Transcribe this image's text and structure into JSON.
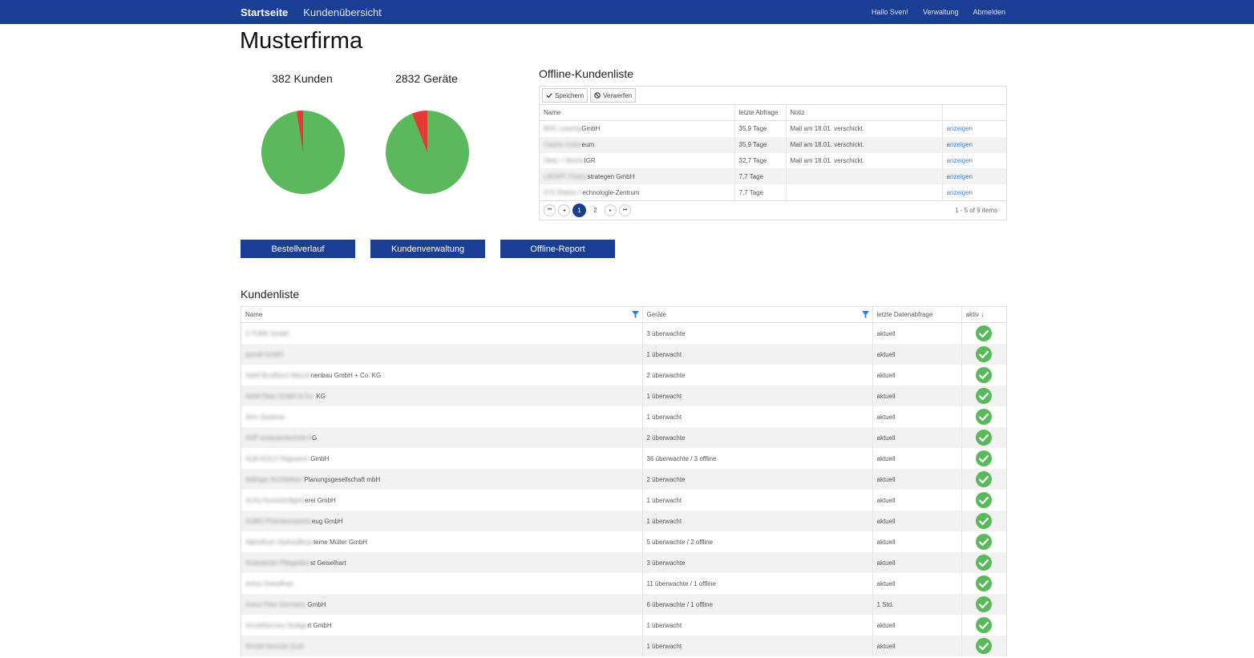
{
  "nav": {
    "brand": "Startseite",
    "link": "Kundenübersicht",
    "greeting": "Hallo Sven!",
    "admin": "Verwaltung",
    "logout": "Abmelden"
  },
  "page_title": "Musterfirma",
  "stats": {
    "customers": "382 Kunden",
    "devices": "2832 Geräte"
  },
  "colors": {
    "primary": "#1a3e94",
    "ok": "#5cb85c",
    "warn": "#e53935"
  },
  "offline": {
    "title": "Offline-Kundenliste",
    "save_label": "Speichern",
    "discard_label": "Verwerfen",
    "columns": [
      "Name",
      "letzte Abfrage",
      "Notiz",
      ""
    ],
    "rows": [
      {
        "name_hidden": "BHC Leasing",
        "name": "GmbH",
        "last": "35,9 Tage",
        "note": "Mail am 18.01. verschickt.",
        "action": "anzeigen"
      },
      {
        "name_hidden": "Casino Colos",
        "name": "eum",
        "last": "35,9 Tage",
        "note": "Mail am 18.01. verschickt.",
        "action": "anzeigen"
      },
      {
        "name_hidden": "Dietz + Roche",
        "name": "IGR",
        "last": "32,7 Tage",
        "note": "Mail am 18.01. verschickt.",
        "action": "anzeigen"
      },
      {
        "name_hidden": "LIEOPF Finanz",
        "name": "strategen GmbH",
        "last": "7,7 Tage",
        "note": "",
        "action": "anzeigen"
      },
      {
        "name_hidden": "ETZ Elektro T",
        "name": "echnologie-Zentrum",
        "last": "7,7 Tage",
        "note": "",
        "action": "anzeigen"
      }
    ],
    "pager": {
      "pages": [
        "1",
        "2"
      ],
      "active": "1",
      "info": "1 - 5 of 9 items"
    }
  },
  "buttons": {
    "orders": "Bestellverlauf",
    "customers": "Kundenverwaltung",
    "report": "Offline-Report"
  },
  "kundenliste": {
    "title": "Kundenliste",
    "columns": [
      "Name",
      "Geräte",
      "letzte Datenabfrage",
      "aktiv ↓"
    ],
    "rows": [
      {
        "name_hidden": "2-TORK GmbH",
        "name": "",
        "devices": "3 überwachte",
        "last": "aktuell"
      },
      {
        "name_hidden": "apsoft GmbH",
        "name": "",
        "devices": "1 überwacht",
        "last": "aktuell"
      },
      {
        "name_hidden": "Adolf Brodbeck Maschi",
        "name": "nenbau GmbH + Co. KG",
        "devices": "2 überwachte",
        "last": "aktuell"
      },
      {
        "name_hidden": "Adolf Dietz GmbH & Co.",
        "name": " KG",
        "devices": "1 überwacht",
        "last": "aktuell"
      },
      {
        "name_hidden": "Alno Systeme",
        "name": "",
        "devices": "1 überwacht",
        "last": "aktuell"
      },
      {
        "name_hidden": "AHP analysentechnik A",
        "name": "G",
        "devices": "2 überwachte",
        "last": "aktuell"
      },
      {
        "name_hidden": "ALB-GOLD Teigwaren ",
        "name": "GmbH",
        "devices": "36 überwachte / 3 offline",
        "last": "aktuell"
      },
      {
        "name_hidden": "Aldinger Architekten ",
        "name": "Planungsgesellschaft mbH",
        "devices": "2 überwachte",
        "last": "aktuell"
      },
      {
        "name_hidden": "ALKU Kunststoffgieß",
        "name": "erei GmbH",
        "devices": "1 überwacht",
        "last": "aktuell"
      },
      {
        "name_hidden": "ALWO Präzisionswerkz",
        "name": "eug GmbH",
        "devices": "1 überwacht",
        "last": "aktuell"
      },
      {
        "name_hidden": "Alphaflush Hydrauliksys",
        "name": "teme Müller GmbH",
        "devices": "5 überwachte / 2 offline",
        "last": "aktuell"
      },
      {
        "name_hidden": "Ambulanter Pflegedien",
        "name": "st Geiselhart",
        "devices": "3 überwachte",
        "last": "aktuell"
      },
      {
        "name_hidden": "Anton Geiselhart",
        "name": "",
        "devices": "11 überwachte / 1 offline",
        "last": "aktuell"
      },
      {
        "name_hidden": "Anton Paar Germany ",
        "name": "GmbH",
        "devices": "6 überwachte / 1 offline",
        "last": "1 Std."
      },
      {
        "name_hidden": "ArnoldService Stuttga",
        "name": "rt GmbH",
        "devices": "1 überwacht",
        "last": "aktuell"
      },
      {
        "name_hidden": "Arnold Gerüste Zuck",
        "name": "",
        "devices": "1 überwacht",
        "last": "aktuell"
      }
    ]
  }
}
